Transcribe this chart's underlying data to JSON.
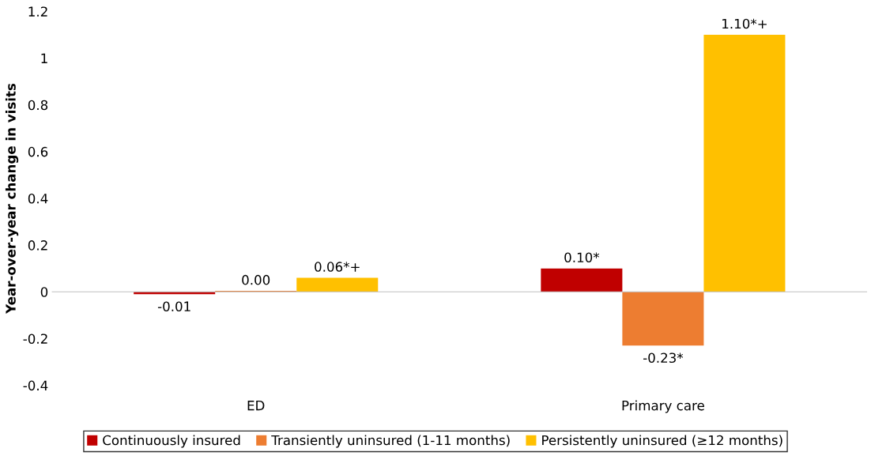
{
  "chart_data": {
    "type": "bar",
    "ylabel": "Year-over-year change in visits",
    "categories": [
      "ED",
      "Primary care"
    ],
    "series": [
      {
        "name": "Continuously insured",
        "color": "#c00000",
        "values": [
          -0.01,
          0.1
        ],
        "value_labels": [
          "-0.01",
          "0.10*"
        ]
      },
      {
        "name": "Transiently uninsured (1-11 months)",
        "color": "#ed7d31",
        "values": [
          0.004,
          -0.23
        ],
        "value_labels": [
          "0.00",
          "-0.23*"
        ]
      },
      {
        "name": "Persistently uninsured (≥12 months)",
        "color": "#ffc000",
        "values": [
          0.06,
          1.1
        ],
        "value_labels": [
          "0.06*+",
          "1.10*+"
        ]
      }
    ],
    "ylim": [
      -0.4,
      1.2
    ],
    "yticks": [
      -0.4,
      -0.2,
      0,
      0.2,
      0.4,
      0.6,
      0.8,
      1,
      1.2
    ],
    "legend": "bottom"
  }
}
